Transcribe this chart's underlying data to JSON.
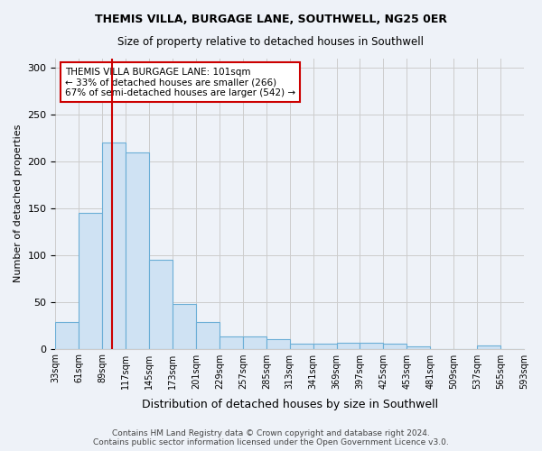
{
  "title1": "THEMIS VILLA, BURGAGE LANE, SOUTHWELL, NG25 0ER",
  "title2": "Size of property relative to detached houses in Southwell",
  "xlabel": "Distribution of detached houses by size in Southwell",
  "ylabel": "Number of detached properties",
  "bin_edges": [
    "33sqm",
    "61sqm",
    "89sqm",
    "117sqm",
    "145sqm",
    "173sqm",
    "201sqm",
    "229sqm",
    "257sqm",
    "285sqm",
    "313sqm",
    "341sqm",
    "369sqm",
    "397sqm",
    "425sqm",
    "453sqm",
    "481sqm",
    "509sqm",
    "537sqm",
    "565sqm",
    "593sqm"
  ],
  "bar_heights": [
    28,
    145,
    220,
    210,
    95,
    48,
    28,
    13,
    13,
    10,
    5,
    5,
    6,
    6,
    5,
    2,
    0,
    0,
    3,
    0
  ],
  "bar_color": "#cfe2f3",
  "bar_edge_color": "#6baed6",
  "grid_color": "#cccccc",
  "bg_color": "#eef2f8",
  "annotation_text": "THEMIS VILLA BURGAGE LANE: 101sqm\n← 33% of detached houses are smaller (266)\n67% of semi-detached houses are larger (542) →",
  "annotation_box_color": "#ffffff",
  "annotation_box_edge": "#cc0000",
  "footer": "Contains HM Land Registry data © Crown copyright and database right 2024.\nContains public sector information licensed under the Open Government Licence v3.0.",
  "ylim": [
    0,
    310
  ],
  "yticks": [
    0,
    50,
    100,
    150,
    200,
    250,
    300
  ]
}
